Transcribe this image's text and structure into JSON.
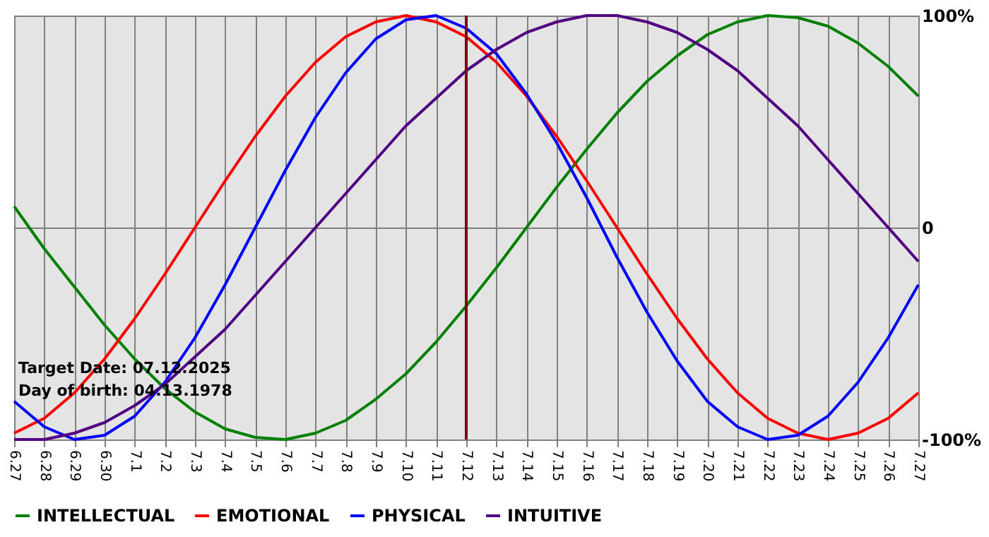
{
  "chart_data": {
    "type": "line",
    "categories": [
      "6.27",
      "6.28",
      "6.29",
      "6.30",
      "7.1",
      "7.2",
      "7.3",
      "7.4",
      "7.5",
      "7.6",
      "7.7",
      "7.8",
      "7.9",
      "7.10",
      "7.11",
      "7.12",
      "7.13",
      "7.14",
      "7.15",
      "7.16",
      "7.17",
      "7.18",
      "7.19",
      "7.20",
      "7.21",
      "7.22",
      "7.23",
      "7.24",
      "7.25",
      "7.26",
      "7.27"
    ],
    "series": [
      {
        "name": "INTELLECTUAL",
        "color": "#008000",
        "values": [
          10,
          -10,
          -28,
          -46,
          -62,
          -76,
          -87,
          -95,
          -99,
          -100,
          -97,
          -91,
          -81,
          -69,
          -54,
          -37,
          -19,
          0,
          19,
          37,
          54,
          69,
          81,
          91,
          97,
          100,
          99,
          95,
          87,
          76,
          62
        ]
      },
      {
        "name": "EMOTIONAL",
        "color": "#ff0000",
        "values": [
          -97,
          -90,
          -78,
          -62,
          -43,
          -22,
          0,
          22,
          43,
          62,
          78,
          90,
          97,
          100,
          97,
          90,
          78,
          62,
          43,
          22,
          0,
          -22,
          -43,
          -62,
          -78,
          -90,
          -97,
          -100,
          -97,
          -90,
          -78
        ]
      },
      {
        "name": "PHYSICAL",
        "color": "#0000ff",
        "values": [
          -82,
          -94,
          -100,
          -98,
          -89,
          -73,
          -52,
          -27,
          0,
          27,
          52,
          73,
          89,
          98,
          100,
          94,
          82,
          63,
          40,
          14,
          -14,
          -40,
          -63,
          -82,
          -94,
          -100,
          -98,
          -89,
          -73,
          -52,
          -27
        ]
      },
      {
        "name": "INTUITIVE",
        "color": "#500080",
        "values": [
          -100,
          -100,
          -97,
          -92,
          -84,
          -74,
          -61,
          -48,
          -32,
          -16,
          0,
          16,
          32,
          48,
          61,
          74,
          84,
          92,
          97,
          100,
          100,
          97,
          92,
          84,
          74,
          61,
          48,
          32,
          16,
          0,
          -16
        ]
      }
    ],
    "ylim": [
      -100,
      100
    ],
    "yticks": [
      {
        "value": 100,
        "label": "100%"
      },
      0,
      {
        "value": -100,
        "label": "-100%"
      }
    ],
    "ref_lines": [
      {
        "axis": "x",
        "value": "7.12",
        "color": "#800000"
      }
    ],
    "annotations": [
      "Target Date: 07.12.2025",
      "Day of birth: 04.13.1978"
    ],
    "grid": true,
    "legend": "bottom",
    "marker": "none",
    "line_style": "solid"
  }
}
